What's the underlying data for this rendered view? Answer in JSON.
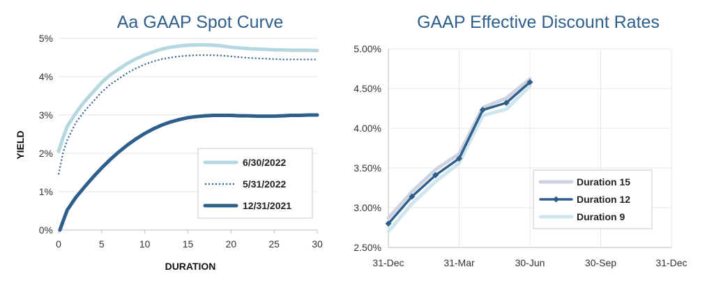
{
  "chart_data": [
    {
      "type": "line",
      "title": "Aa GAAP Spot Curve",
      "xlabel": "DURATION",
      "ylabel": "YIELD",
      "xlim": [
        0,
        30
      ],
      "ylim": [
        0,
        5
      ],
      "x_ticks": [
        0,
        5,
        10,
        15,
        20,
        25,
        30
      ],
      "x_tick_labels": [
        "0",
        "5",
        "10",
        "15",
        "20",
        "25",
        "30"
      ],
      "y_ticks": [
        0,
        1,
        2,
        3,
        4,
        5
      ],
      "y_tick_labels": [
        "0%",
        "1%",
        "2%",
        "3%",
        "4%",
        "5%"
      ],
      "grid": "horizontal",
      "legend_position": "bottom-right",
      "series": [
        {
          "name": "6/30/2022",
          "color": "#b5d8e0",
          "style": "solid-thick",
          "x": [
            0,
            0.5,
            1,
            2,
            3,
            4,
            5,
            6,
            7,
            8,
            9,
            10,
            11,
            12,
            13,
            14,
            15,
            16,
            17,
            18,
            19,
            20,
            21,
            22,
            23,
            24,
            25,
            26,
            27,
            28,
            29,
            30
          ],
          "values": [
            2.05,
            2.4,
            2.7,
            3.05,
            3.35,
            3.6,
            3.85,
            4.05,
            4.2,
            4.35,
            4.47,
            4.57,
            4.65,
            4.72,
            4.77,
            4.8,
            4.82,
            4.83,
            4.83,
            4.82,
            4.8,
            4.77,
            4.75,
            4.73,
            4.72,
            4.71,
            4.7,
            4.7,
            4.69,
            4.69,
            4.69,
            4.68
          ]
        },
        {
          "name": "5/31/2022",
          "color": "#2e5f8c",
          "style": "dotted",
          "x": [
            0,
            0.5,
            1,
            2,
            3,
            4,
            5,
            6,
            7,
            8,
            9,
            10,
            11,
            12,
            13,
            14,
            15,
            16,
            17,
            18,
            19,
            20,
            21,
            22,
            23,
            24,
            25,
            26,
            27,
            28,
            29,
            30
          ],
          "values": [
            1.45,
            2.0,
            2.35,
            2.8,
            3.1,
            3.35,
            3.6,
            3.8,
            3.95,
            4.1,
            4.22,
            4.32,
            4.4,
            4.46,
            4.5,
            4.53,
            4.55,
            4.56,
            4.56,
            4.56,
            4.55,
            4.53,
            4.51,
            4.49,
            4.48,
            4.47,
            4.46,
            4.45,
            4.45,
            4.45,
            4.45,
            4.45
          ]
        },
        {
          "name": "12/31/2021",
          "color": "#2e5f8c",
          "style": "solid-thick",
          "x": [
            0.15,
            0.5,
            1,
            2,
            3,
            4,
            5,
            6,
            7,
            8,
            9,
            10,
            11,
            12,
            13,
            14,
            15,
            16,
            17,
            18,
            19,
            20,
            21,
            22,
            23,
            24,
            25,
            26,
            27,
            28,
            29,
            30
          ],
          "values": [
            0.0,
            0.22,
            0.52,
            0.85,
            1.12,
            1.38,
            1.62,
            1.84,
            2.04,
            2.22,
            2.38,
            2.52,
            2.64,
            2.74,
            2.82,
            2.88,
            2.93,
            2.96,
            2.98,
            2.99,
            2.99,
            2.99,
            2.98,
            2.98,
            2.97,
            2.97,
            2.97,
            2.98,
            2.99,
            2.99,
            3.0,
            3.0
          ]
        }
      ]
    },
    {
      "type": "line",
      "title": "GAAP Effective Discount Rates",
      "xlabel": "",
      "ylabel": "",
      "x_ticks": [
        "31-Dec",
        "31-Mar",
        "30-Jun",
        "30-Sep",
        "31-Dec"
      ],
      "x_index_range": [
        0,
        12
      ],
      "ylim": [
        2.5,
        5.0
      ],
      "y_ticks": [
        2.5,
        3.0,
        3.5,
        4.0,
        4.5,
        5.0
      ],
      "y_tick_labels": [
        "2.50%",
        "3.00%",
        "3.50%",
        "4.00%",
        "4.50%",
        "5.00%"
      ],
      "grid": "both",
      "legend_position": "bottom-right",
      "series": [
        {
          "name": "Duration 15",
          "color": "#cdd4df",
          "style": "solid-thick",
          "x": [
            0,
            1,
            2,
            3,
            4,
            5,
            6
          ],
          "values": [
            2.87,
            3.2,
            3.48,
            3.68,
            4.26,
            4.38,
            4.62
          ]
        },
        {
          "name": "Duration 12",
          "color": "#2e5f8c",
          "style": "solid-diamond",
          "x": [
            0,
            1,
            2,
            3,
            4,
            5,
            6
          ],
          "values": [
            2.8,
            3.14,
            3.41,
            3.62,
            4.23,
            4.32,
            4.58
          ]
        },
        {
          "name": "Duration 9",
          "color": "#cfe6ee",
          "style": "solid-thick",
          "x": [
            0,
            1,
            2,
            3,
            4,
            5,
            6
          ],
          "values": [
            2.7,
            3.05,
            3.33,
            3.56,
            4.16,
            4.24,
            4.53
          ]
        }
      ]
    }
  ]
}
